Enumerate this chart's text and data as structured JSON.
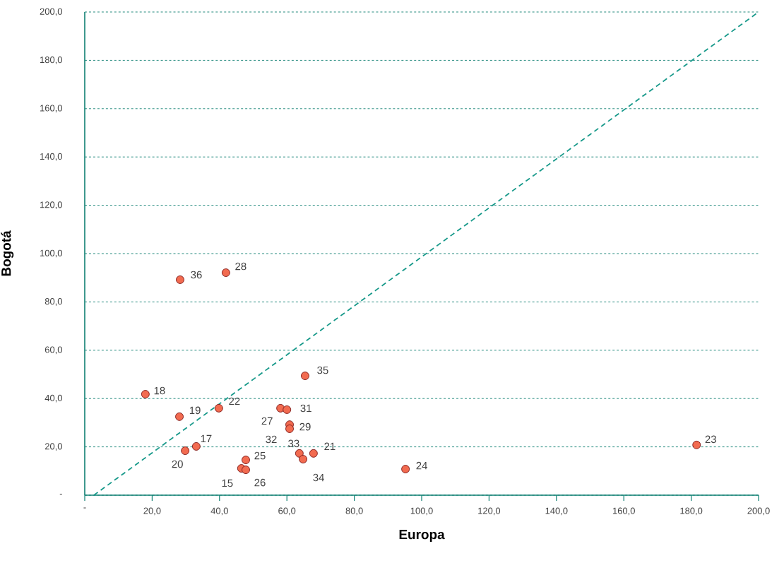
{
  "chart_data": {
    "type": "scatter",
    "xlabel": "Europa",
    "ylabel": "Bogotá",
    "xlim": [
      0,
      200
    ],
    "ylim": [
      0,
      200
    ],
    "xticks": [
      {
        "value": 0,
        "label": "-"
      },
      {
        "value": 20,
        "label": "20,0"
      },
      {
        "value": 40,
        "label": "40,0"
      },
      {
        "value": 60,
        "label": "60,0"
      },
      {
        "value": 80,
        "label": "80,0"
      },
      {
        "value": 100,
        "label": "100,0"
      },
      {
        "value": 120,
        "label": "120,0"
      },
      {
        "value": 140,
        "label": "140,0"
      },
      {
        "value": 160,
        "label": "160,0"
      },
      {
        "value": 180,
        "label": "180,0"
      },
      {
        "value": 200,
        "label": "200,0"
      }
    ],
    "yticks": [
      {
        "value": 0,
        "label": "-"
      },
      {
        "value": 20,
        "label": "20,0"
      },
      {
        "value": 40,
        "label": "40,0"
      },
      {
        "value": 60,
        "label": "60,0"
      },
      {
        "value": 80,
        "label": "80,0"
      },
      {
        "value": 100,
        "label": "100,0"
      },
      {
        "value": 120,
        "label": "120,0"
      },
      {
        "value": 140,
        "label": "140,0"
      },
      {
        "value": 160,
        "label": "160,0"
      },
      {
        "value": 180,
        "label": "180,0"
      },
      {
        "value": 200,
        "label": "200,0"
      }
    ],
    "grid": "y",
    "marker": "circle",
    "series": [
      {
        "color": "#f26b50",
        "x": [
          18.0,
          28.1,
          39.8,
          33.1,
          29.8,
          47.8,
          46.5,
          47.8,
          58.1,
          60.0,
          60.8,
          60.8,
          63.7,
          64.8,
          67.9,
          65.4,
          95.2,
          181.6,
          28.3,
          41.9
        ],
        "values": [
          41.8,
          32.5,
          36.0,
          20.2,
          18.4,
          14.6,
          11.1,
          10.5,
          36.0,
          35.4,
          29.2,
          27.5,
          17.3,
          14.9,
          17.3,
          49.4,
          10.8,
          20.8,
          89.2,
          92.1
        ]
      },
      {
        "type": "line",
        "marker": "none",
        "color": "#17998a",
        "line_style": "dashed",
        "x": [
          2.7,
          200
        ],
        "values": [
          0,
          200
        ]
      }
    ],
    "annotations": [
      {
        "text": "18",
        "x": 18.0,
        "y": 41.8
      },
      {
        "text": "19",
        "x": 28.1,
        "y": 32.5
      },
      {
        "text": "22",
        "x": 39.8,
        "y": 36.0
      },
      {
        "text": "17",
        "x": 33.1,
        "y": 20.2
      },
      {
        "text": "20",
        "x": 29.8,
        "y": 18.4
      },
      {
        "text": "25",
        "x": 47.8,
        "y": 14.6
      },
      {
        "text": "15",
        "x": 46.5,
        "y": 11.1
      },
      {
        "text": "26",
        "x": 47.8,
        "y": 10.5
      },
      {
        "text": "27",
        "x": 58.1,
        "y": 36.0
      },
      {
        "text": "31",
        "x": 60.0,
        "y": 35.4
      },
      {
        "text": "29",
        "x": 60.8,
        "y": 29.2
      },
      {
        "text": "32",
        "x": 60.8,
        "y": 27.5
      },
      {
        "text": "33",
        "x": 63.7,
        "y": 17.3
      },
      {
        "text": "34",
        "x": 64.8,
        "y": 14.9
      },
      {
        "text": "21",
        "x": 67.9,
        "y": 17.3
      },
      {
        "text": "35",
        "x": 65.4,
        "y": 49.4
      },
      {
        "text": "24",
        "x": 95.2,
        "y": 10.8
      },
      {
        "text": "23",
        "x": 181.6,
        "y": 20.8
      },
      {
        "text": "36",
        "x": 28.3,
        "y": 89.2
      },
      {
        "text": "28",
        "x": 41.9,
        "y": 92.1
      }
    ]
  }
}
